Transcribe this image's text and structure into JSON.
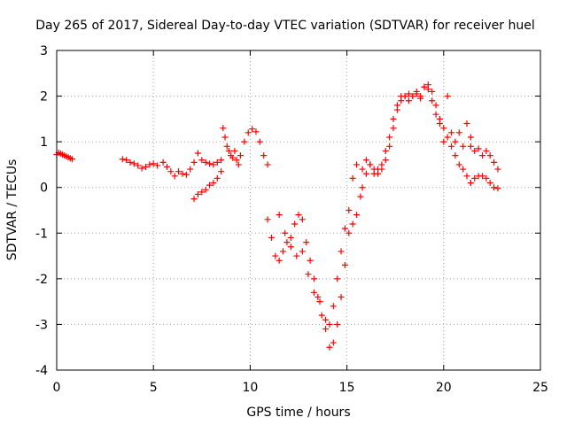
{
  "chart_data": {
    "type": "scatter",
    "title": "Day 265 of 2017, Sidereal Day-to-day VTEC variation (SDTVAR) for receiver huel",
    "xlabel": "GPS time / hours",
    "ylabel": "SDTVAR / TECUs",
    "xlim": [
      0,
      25
    ],
    "ylim": [
      -4,
      3
    ],
    "xticks": [
      "0",
      "5",
      "10",
      "15",
      "20",
      "25"
    ],
    "yticks": [
      "-4",
      "-3",
      "-2",
      "-1",
      "0",
      "1",
      "2",
      "3"
    ],
    "grid": true,
    "marker": "plus",
    "color": "#ff0000",
    "series": [
      {
        "x": [
          0.0,
          0.1,
          0.2,
          0.3,
          0.4,
          0.5,
          0.6,
          0.7,
          0.8
        ],
        "y": [
          0.72,
          0.76,
          0.74,
          0.72,
          0.7,
          0.68,
          0.66,
          0.64,
          0.62
        ]
      },
      {
        "x": [
          3.4,
          3.6,
          3.8,
          4.0,
          4.2,
          4.4,
          4.6,
          4.8,
          5.0,
          5.2
        ],
        "y": [
          0.62,
          0.6,
          0.55,
          0.52,
          0.48,
          0.42,
          0.45,
          0.5,
          0.52,
          0.48
        ]
      },
      {
        "x": [
          5.5,
          5.7,
          5.9,
          6.1,
          6.3,
          6.5,
          6.7,
          6.9,
          7.1,
          7.3,
          7.5,
          7.7,
          7.9,
          8.1,
          8.3,
          8.5
        ],
        "y": [
          0.55,
          0.45,
          0.35,
          0.25,
          0.35,
          0.3,
          0.28,
          0.4,
          0.55,
          0.75,
          0.6,
          0.55,
          0.52,
          0.5,
          0.55,
          0.6
        ]
      },
      {
        "x": [
          7.1,
          7.3,
          7.5,
          7.7,
          7.9,
          8.1,
          8.3,
          8.5
        ],
        "y": [
          -0.25,
          -0.15,
          -0.1,
          -0.05,
          0.05,
          0.1,
          0.2,
          0.35
        ]
      },
      {
        "x": [
          8.6,
          8.7,
          8.8,
          8.9,
          9.0,
          9.1,
          9.2,
          9.3,
          9.4,
          9.5,
          9.7,
          9.9,
          10.1,
          10.3,
          10.5,
          10.7,
          10.9
        ],
        "y": [
          1.3,
          1.1,
          0.9,
          0.8,
          0.7,
          0.65,
          0.8,
          0.6,
          0.5,
          0.7,
          1.0,
          1.2,
          1.28,
          1.22,
          1.0,
          0.7,
          0.5
        ]
      },
      {
        "x": [
          10.9,
          11.1,
          11.3,
          11.5,
          11.7,
          11.9,
          12.1,
          12.3,
          12.5,
          12.7,
          12.9,
          13.1,
          13.3,
          13.5,
          13.7,
          13.9,
          14.1,
          14.3,
          14.5,
          14.7,
          14.9,
          15.1,
          15.3,
          15.5
        ],
        "y": [
          -0.7,
          -1.1,
          -1.5,
          -1.6,
          -1.4,
          -1.2,
          -1.1,
          -0.8,
          -0.6,
          -0.7,
          -1.2,
          -1.6,
          -2.0,
          -2.4,
          -2.8,
          -3.1,
          -3.0,
          -2.6,
          -2.0,
          -1.4,
          -0.9,
          -0.5,
          0.2,
          0.5
        ]
      },
      {
        "x": [
          11.5,
          11.8,
          12.1,
          12.4,
          12.7,
          13.0,
          13.3,
          13.6,
          13.9,
          14.1,
          14.3,
          14.5,
          14.7,
          14.9,
          15.1,
          15.3,
          15.5,
          15.7
        ],
        "y": [
          -0.6,
          -1.0,
          -1.3,
          -1.5,
          -1.4,
          -1.9,
          -2.3,
          -2.5,
          -2.9,
          -3.5,
          -3.4,
          -3.0,
          -2.4,
          -1.7,
          -1.0,
          -0.8,
          -0.6,
          -0.2
        ]
      },
      {
        "x": [
          15.8,
          16.0,
          16.2,
          16.4,
          16.6,
          16.8,
          17.0,
          17.2,
          17.4,
          17.6,
          17.8,
          18.0,
          18.2,
          18.4,
          18.6,
          18.8,
          19.0,
          19.2,
          19.4,
          19.6,
          19.8,
          20.0,
          20.2,
          20.4,
          20.6,
          20.8,
          21.0,
          21.2,
          21.4
        ],
        "y": [
          0.0,
          0.3,
          0.5,
          0.4,
          0.3,
          0.4,
          0.6,
          0.9,
          1.3,
          1.7,
          1.9,
          2.0,
          2.05,
          2.0,
          2.1,
          2.0,
          2.2,
          2.25,
          2.1,
          1.8,
          1.5,
          1.3,
          1.1,
          0.9,
          0.7,
          0.5,
          0.4,
          0.25,
          0.1
        ]
      },
      {
        "x": [
          15.8,
          16.0,
          16.2,
          16.4,
          16.6,
          16.8,
          17.0,
          17.2,
          17.4,
          17.6,
          17.8,
          18.0,
          18.2,
          18.4,
          18.6,
          18.8,
          19.0,
          19.2,
          19.4,
          19.6,
          19.8,
          20.0,
          20.2,
          20.4,
          20.6,
          20.8,
          21.0,
          21.2,
          21.4
        ],
        "y": [
          0.4,
          0.6,
          0.5,
          0.3,
          0.4,
          0.5,
          0.8,
          1.1,
          1.5,
          1.8,
          2.0,
          2.0,
          1.9,
          2.0,
          2.05,
          1.95,
          2.2,
          2.15,
          1.9,
          1.6,
          1.4,
          1.0,
          2.0,
          1.2,
          1.0,
          1.2,
          0.9,
          1.4,
          1.1
        ]
      },
      {
        "x": [
          21.4,
          21.6,
          21.8,
          22.0,
          22.2,
          22.4,
          22.6,
          22.8
        ],
        "y": [
          0.9,
          0.8,
          0.85,
          0.7,
          0.8,
          0.7,
          0.55,
          0.4
        ]
      },
      {
        "x": [
          21.4,
          21.6,
          21.8,
          22.0,
          22.2,
          22.4,
          22.6,
          22.8
        ],
        "y": [
          0.1,
          0.2,
          0.25,
          0.25,
          0.2,
          0.1,
          0.0,
          -0.02
        ]
      }
    ]
  }
}
